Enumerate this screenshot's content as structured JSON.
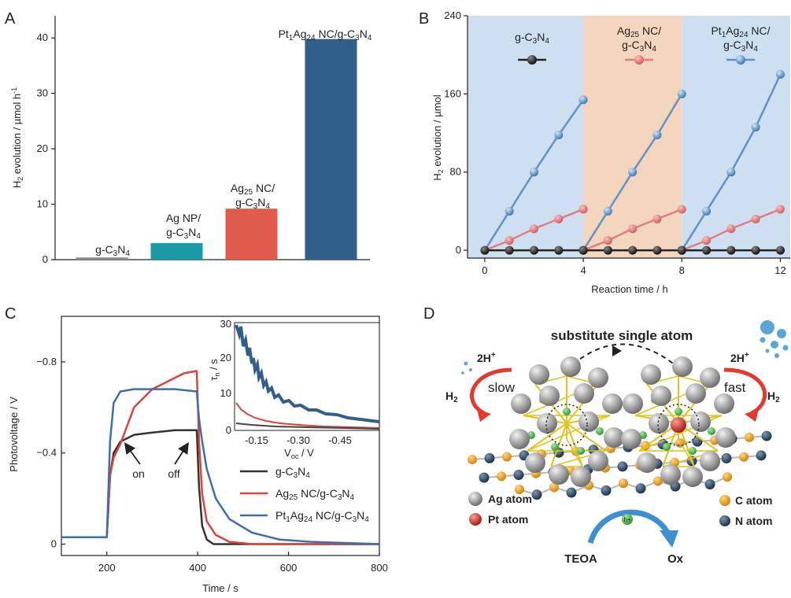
{
  "panels": [
    {
      "letter": "A"
    },
    {
      "letter": "B"
    },
    {
      "letter": "C"
    },
    {
      "letter": "D"
    }
  ],
  "chart_data": [
    {
      "panel": "A",
      "type": "bar",
      "ylabel": "H2 evolution / µmol h-1",
      "ylim": [
        0,
        44
      ],
      "yticks": [
        "0",
        "10",
        "20",
        "30",
        "40"
      ],
      "categories": [
        {
          "label": "g-C3N4",
          "value": 0.4,
          "color": "#8c8c8c"
        },
        {
          "label": "Ag NP/ g-C3N4",
          "value": 3.0,
          "color": "#1a9aa6"
        },
        {
          "label": "Ag25 NC/ g-C3N4",
          "value": 9.2,
          "color": "#e15b4c"
        },
        {
          "label": "Pt1Ag24 NC/g-C3N4",
          "value": 39.8,
          "color": "#2f5f8a"
        }
      ]
    },
    {
      "panel": "B",
      "type": "line",
      "xlabel": "Reaction time / h",
      "ylabel": "H2 evolution / µmol",
      "xlim": [
        -0.7,
        12.4
      ],
      "ylim": [
        -8,
        240
      ],
      "xticks": [
        "0",
        "4",
        "8",
        "12"
      ],
      "yticks": [
        "0",
        "80",
        "160",
        "240"
      ],
      "regions": [
        {
          "label": "g-C3N4",
          "from": -0.7,
          "to": 4,
          "color": "#cddff0"
        },
        {
          "label": "Ag25 NC/ g-C3N4",
          "from": 4,
          "to": 8,
          "color": "#f4d5bd"
        },
        {
          "label": "Pt1Ag24 NC/ g-C3N4",
          "from": 8,
          "to": 12.4,
          "color": "#cddff0"
        }
      ],
      "series": [
        {
          "color": "#222222",
          "x": [
            0,
            1,
            2,
            3,
            4,
            5,
            6,
            7,
            8,
            9,
            10,
            11,
            12
          ],
          "y": [
            0,
            0,
            0,
            0,
            0,
            0,
            0,
            0,
            0,
            0,
            0,
            0,
            0
          ]
        },
        {
          "color": "#e07f7f",
          "x": [
            0,
            1,
            2,
            3,
            4,
            5,
            6,
            7,
            8,
            9,
            10,
            11,
            12
          ],
          "y": [
            0,
            10,
            22,
            32,
            42,
            10,
            22,
            32,
            42,
            10,
            22,
            32,
            42
          ]
        },
        {
          "color": "#5f93c8",
          "x": [
            0,
            1,
            2,
            3,
            4,
            5,
            6,
            7,
            8,
            9,
            10,
            11,
            12
          ],
          "y": [
            0,
            40,
            80,
            118,
            154,
            40,
            80,
            118,
            160,
            40,
            80,
            126,
            180
          ]
        }
      ]
    },
    {
      "panel": "C",
      "type": "line",
      "xlabel": "Time / s",
      "ylabel": "Photovoltage / V",
      "xlim": [
        100,
        800
      ],
      "ylim": [
        0.05,
        -1.0
      ],
      "xticks": [
        "200",
        "400",
        "600",
        "800"
      ],
      "yticks": [
        "−0.8",
        "−0.4",
        "0"
      ],
      "annotations": [
        "on",
        "off"
      ],
      "series": [
        {
          "name": "g-C3N4",
          "color": "#333333",
          "x": [
            100,
            200,
            207,
            215,
            230,
            260,
            300,
            350,
            398,
            403,
            410,
            420,
            435,
            460,
            800
          ],
          "y": [
            -0.03,
            -0.03,
            -0.3,
            -0.4,
            -0.45,
            -0.48,
            -0.49,
            -0.5,
            -0.5,
            -0.25,
            -0.08,
            -0.02,
            0,
            0,
            0
          ]
        },
        {
          "name": "Ag25 NC/g-C3N4",
          "color": "#d9443b",
          "x": [
            100,
            200,
            207,
            215,
            230,
            260,
            300,
            340,
            370,
            398,
            403,
            410,
            420,
            440,
            470,
            520,
            800
          ],
          "y": [
            -0.03,
            -0.03,
            -0.3,
            -0.38,
            -0.44,
            -0.6,
            -0.68,
            -0.72,
            -0.75,
            -0.76,
            -0.45,
            -0.22,
            -0.1,
            -0.04,
            -0.01,
            0,
            0
          ]
        },
        {
          "name": "Pt1Ag24 NC/g-C3N4",
          "color": "#3e6fa8",
          "x": [
            100,
            200,
            207,
            215,
            230,
            260,
            300,
            350,
            398,
            403,
            410,
            420,
            440,
            470,
            520,
            580,
            650,
            800
          ],
          "y": [
            -0.03,
            -0.03,
            -0.45,
            -0.62,
            -0.67,
            -0.68,
            -0.68,
            -0.68,
            -0.67,
            -0.55,
            -0.45,
            -0.33,
            -0.2,
            -0.11,
            -0.05,
            -0.02,
            -0.01,
            0
          ]
        }
      ],
      "inset": {
        "xlabel": "Voc / V",
        "ylabel": "τn / s",
        "xticks": [
          "-0.15",
          "-0.30",
          "-0.45"
        ],
        "yticks": [
          "0",
          "10",
          "20",
          "30"
        ]
      }
    }
  ],
  "diagram_d": {
    "title": "substitute single atom",
    "left_reaction": "2H+",
    "left_product": "H2",
    "left_speed": "slow",
    "right_reaction": "2H+",
    "right_product": "H2",
    "right_speed": "fast",
    "bottom_left": "TEOA",
    "bottom_right": "Ox",
    "hole_label": "h+",
    "legend": [
      {
        "label": "Ag atom",
        "color": "#9a9a9a"
      },
      {
        "label": "Pt atom",
        "color": "#d23a2c"
      },
      {
        "label": "C atom",
        "color": "#f0a21e"
      },
      {
        "label": "N atom",
        "color": "#2e4763"
      }
    ]
  }
}
